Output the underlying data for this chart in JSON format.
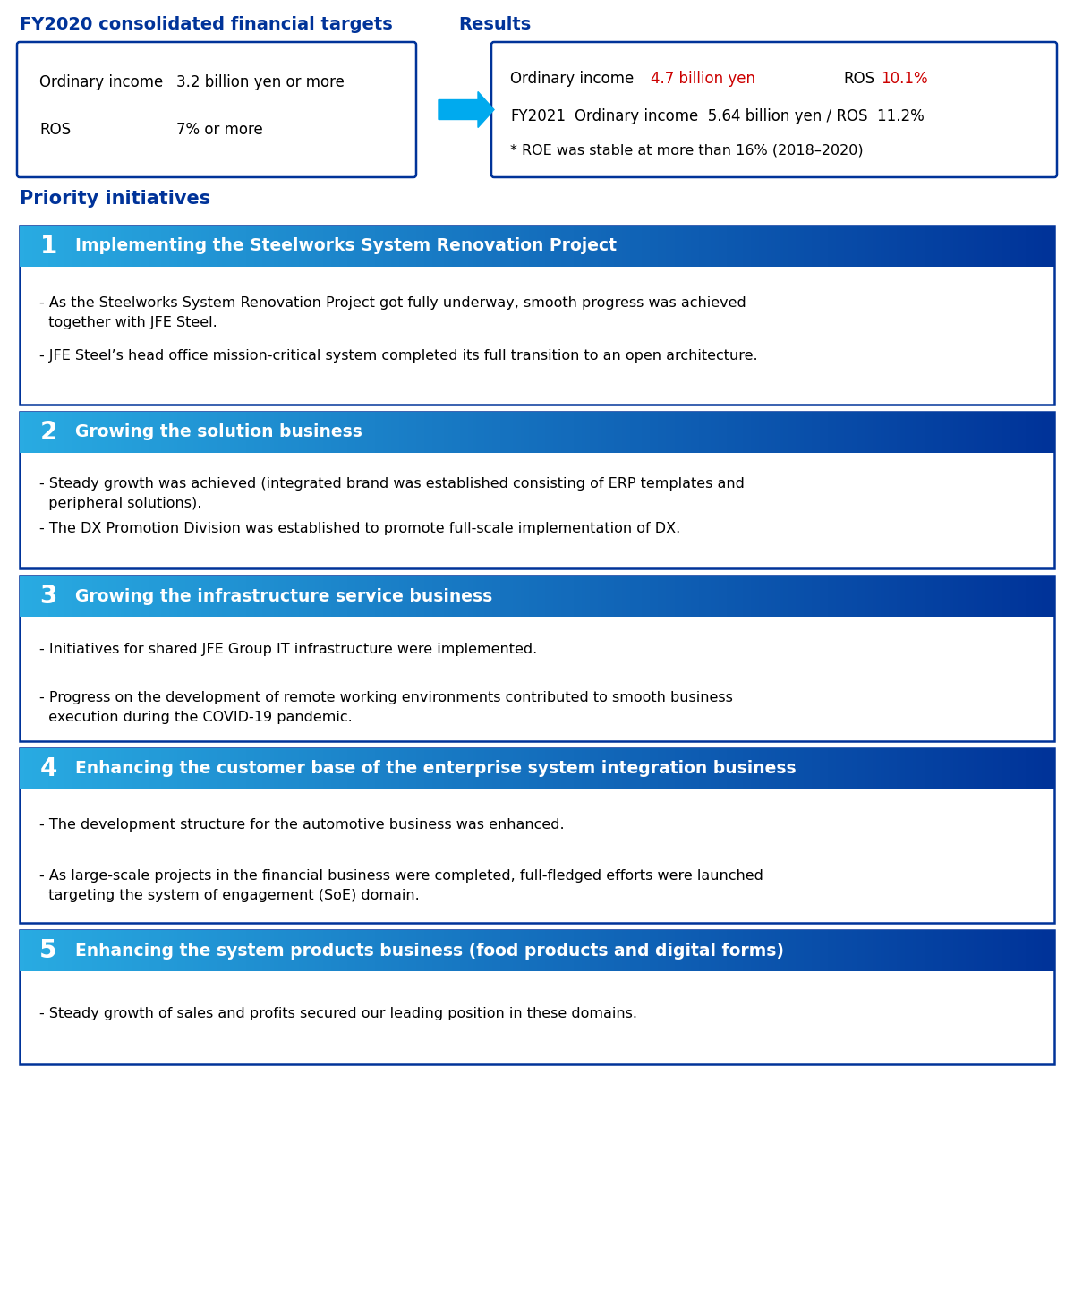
{
  "bg_color": "#ffffff",
  "top_section": {
    "left_title": "FY2020 consolidated financial targets",
    "left_title_color": "#003399",
    "left_box_items": [
      [
        "Ordinary income",
        "3.2 billion yen or more"
      ],
      [
        "ROS",
        "7% or more"
      ]
    ],
    "right_title": "Results",
    "right_title_color": "#003399"
  },
  "priority_title": "Priority initiatives",
  "priority_title_color": "#003399",
  "sections": [
    {
      "number": "1",
      "title": "Implementing the Steelworks System Renovation Project",
      "bullets": [
        "- As the Steelworks System Renovation Project got fully underway, smooth progress was achieved\n  together with JFE Steel.",
        "- JFE Steel’s head office mission-critical system completed its full transition to an open architecture."
      ]
    },
    {
      "number": "2",
      "title": "Growing the solution business",
      "bullets": [
        "- Steady growth was achieved (integrated brand was established consisting of ERP templates and\n  peripheral solutions).",
        "- The DX Promotion Division was established to promote full-scale implementation of DX."
      ]
    },
    {
      "number": "3",
      "title": "Growing the infrastructure service business",
      "bullets": [
        "- Initiatives for shared JFE Group IT infrastructure were implemented.",
        "- Progress on the development of remote working environments contributed to smooth business\n  execution during the COVID-19 pandemic."
      ]
    },
    {
      "number": "4",
      "title": "Enhancing the customer base of the enterprise system integration business",
      "bullets": [
        "- The development structure for the automotive business was enhanced.",
        "- As large-scale projects in the financial business were completed, full-fledged efforts were launched\n  targeting the system of engagement (SoE) domain."
      ]
    },
    {
      "number": "5",
      "title": "Enhancing the system products business (food products and digital forms)",
      "bullets": [
        "- Steady growth of sales and profits secured our leading position in these domains."
      ]
    }
  ],
  "header_grad_left": "#29abe2",
  "header_grad_right": "#003399",
  "header_text_color": "#ffffff",
  "box_border_color": "#003399",
  "bullet_text_color": "#000000",
  "red_color": "#cc0000"
}
